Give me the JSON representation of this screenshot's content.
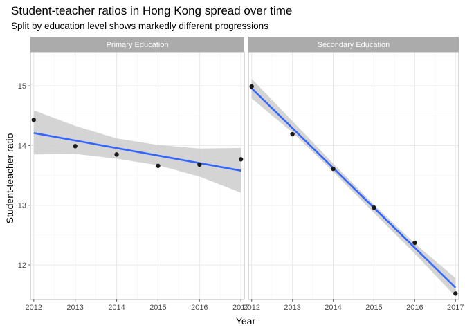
{
  "chart_data": {
    "type": "scatter",
    "title": "Student-teacher ratios in Hong Kong spread over time",
    "subtitle": "Split by education level shows markedly different progressions",
    "xlabel": "Year",
    "ylabel": "Student-teacher ratio",
    "x_ticks": [
      "2012",
      "2013",
      "2014",
      "2015",
      "2016",
      "2017"
    ],
    "y_ticks": [
      "12",
      "13",
      "14",
      "15"
    ],
    "xlim": [
      2011.92,
      2017.08
    ],
    "ylim": [
      11.42,
      15.57
    ],
    "grid": true,
    "facets": [
      {
        "label": "Primary Education",
        "points": [
          {
            "x": 2012,
            "y": 14.43
          },
          {
            "x": 2013,
            "y": 13.99
          },
          {
            "x": 2014,
            "y": 13.85
          },
          {
            "x": 2015,
            "y": 13.66
          },
          {
            "x": 2016,
            "y": 13.68
          },
          {
            "x": 2017,
            "y": 13.77
          }
        ],
        "trend": {
          "x": [
            2012,
            2017
          ],
          "y": [
            14.21,
            13.58
          ]
        },
        "band": [
          {
            "x": 2012,
            "lo": 13.85,
            "hi": 14.59
          },
          {
            "x": 2013,
            "lo": 13.86,
            "hi": 14.33
          },
          {
            "x": 2014,
            "lo": 13.78,
            "hi": 14.12
          },
          {
            "x": 2015,
            "lo": 13.67,
            "hi": 14.01
          },
          {
            "x": 2016,
            "lo": 13.48,
            "hi": 13.95
          },
          {
            "x": 2017,
            "lo": 13.21,
            "hi": 13.96
          }
        ]
      },
      {
        "label": "Secondary Education",
        "points": [
          {
            "x": 2012,
            "y": 14.99
          },
          {
            "x": 2013,
            "y": 14.19
          },
          {
            "x": 2014,
            "y": 13.61
          },
          {
            "x": 2015,
            "y": 12.96
          },
          {
            "x": 2016,
            "y": 12.37
          },
          {
            "x": 2017,
            "y": 11.52
          }
        ],
        "trend": {
          "x": [
            2012,
            2017
          ],
          "y": [
            14.96,
            11.62
          ]
        },
        "band": [
          {
            "x": 2012,
            "lo": 14.79,
            "hi": 15.12
          },
          {
            "x": 2013,
            "lo": 14.22,
            "hi": 14.41
          },
          {
            "x": 2014,
            "lo": 13.56,
            "hi": 13.7
          },
          {
            "x": 2015,
            "lo": 12.87,
            "hi": 13.01
          },
          {
            "x": 2016,
            "lo": 12.19,
            "hi": 12.36
          },
          {
            "x": 2017,
            "lo": 11.47,
            "hi": 11.78
          }
        ]
      }
    ],
    "colors": {
      "panel_border": "#b3b3b3",
      "grid_major": "#e8e8e8",
      "grid_minor": "#f4f4f4",
      "strip_bg": "#ababab",
      "strip_text": "#ffffff",
      "point": "#1a1a1a",
      "trend_line": "#3366ff",
      "band": "#cccccc"
    }
  }
}
